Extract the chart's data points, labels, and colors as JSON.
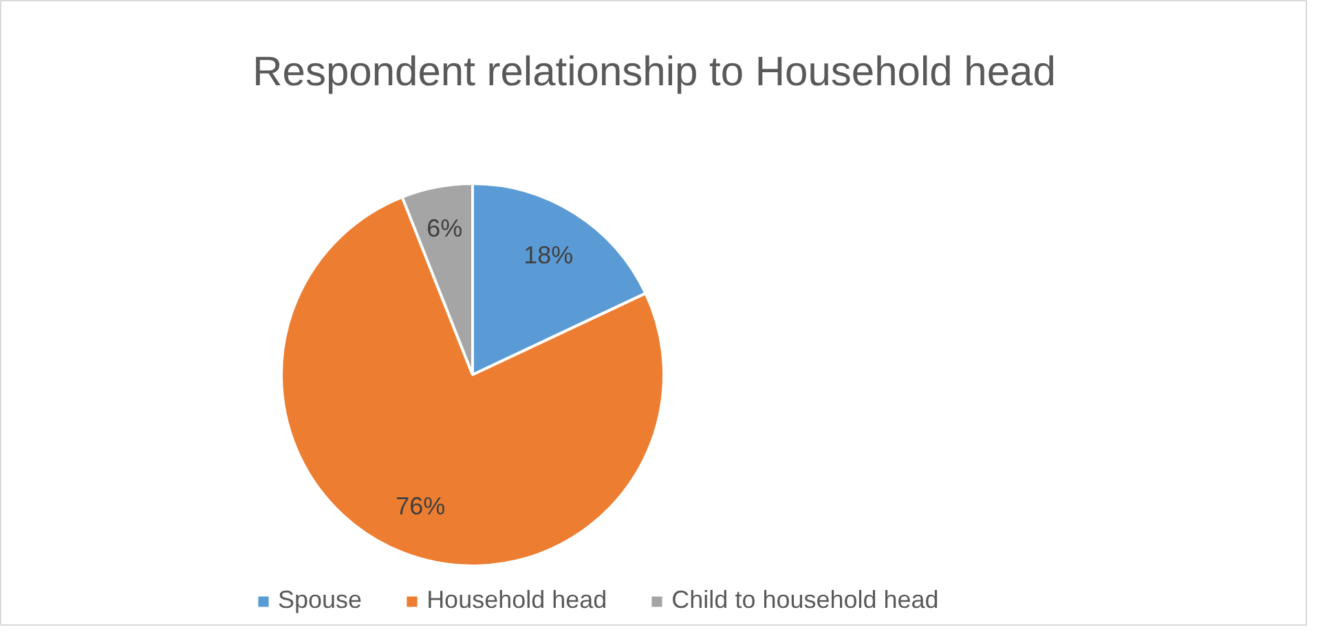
{
  "chart_data": {
    "type": "pie",
    "title": "Respondent relationship to Household head",
    "categories": [
      "Spouse",
      "Household head",
      "Child to household head"
    ],
    "values": [
      18,
      76,
      6
    ],
    "colors": [
      "#5b9bd5",
      "#ed7d31",
      "#a5a5a5"
    ],
    "value_labels": [
      "18%",
      "76%",
      "6%"
    ],
    "legend": "bottom"
  }
}
